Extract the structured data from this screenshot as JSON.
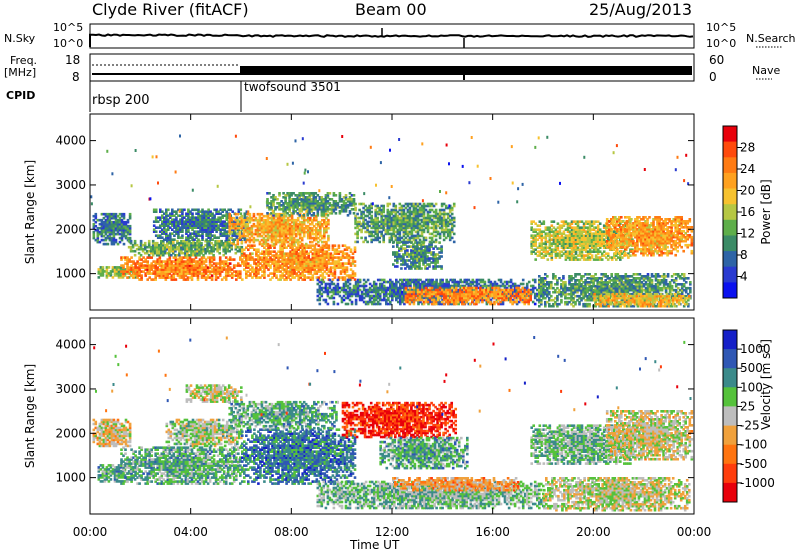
{
  "header": {
    "title": "Clyde River (fitACF)",
    "beam": "Beam 00",
    "date": "25/Aug/2013"
  },
  "status_panel": {
    "nsky_label": "N.Sky",
    "nsky_ticks": [
      "10^5",
      "10^0"
    ],
    "nsearch_label": "N.Search",
    "nsearch_ticks": [
      "10^5",
      "10^0"
    ],
    "freq_label": "Freq.",
    "freq_unit": "[MHz]",
    "freq_ticks": [
      "18",
      "8"
    ],
    "nave_label": "Nave",
    "nave_ticks": [
      "60",
      "0"
    ],
    "cpid_label": "CPID",
    "cpid_modes": [
      {
        "name": "rbsp 200",
        "start_hour": 0
      },
      {
        "name": "twofsound 3501",
        "start_hour": 6
      }
    ]
  },
  "chart_data": [
    {
      "type": "heatmap",
      "name": "power-panel",
      "ylabel": "Slant Range [km]",
      "yticks": [
        1000,
        2000,
        3000,
        4000
      ],
      "ylim": [
        180,
        4600
      ],
      "xlim_hours": [
        0,
        24
      ],
      "colorbar": {
        "label": "Power [dB]",
        "ticks": [
          "28",
          "24",
          "20",
          "16",
          "12",
          "8",
          "4"
        ],
        "colors": [
          "#e8000b",
          "#ff4a0c",
          "#ff7b13",
          "#ffa11f",
          "#f7c22f",
          "#b6c743",
          "#5eae4a",
          "#3b8b66",
          "#2e64a6",
          "#2a3bd0",
          "#0b11ee"
        ]
      },
      "regions": [
        {
          "t0": 0.1,
          "t1": 1.6,
          "r0": 1650,
          "r1": 2350,
          "level": 0.25
        },
        {
          "t0": 0.3,
          "t1": 1.8,
          "r0": 900,
          "r1": 1150,
          "level": 0.45
        },
        {
          "t0": 1.2,
          "t1": 6.0,
          "r0": 850,
          "r1": 1350,
          "level": 0.78
        },
        {
          "t0": 1.5,
          "t1": 6.0,
          "r0": 1400,
          "r1": 1750,
          "level": 0.4
        },
        {
          "t0": 2.5,
          "t1": 6.2,
          "r0": 1750,
          "r1": 2450,
          "level": 0.25
        },
        {
          "t0": 6.0,
          "t1": 10.5,
          "r0": 850,
          "r1": 1650,
          "level": 0.72
        },
        {
          "t0": 5.5,
          "t1": 9.5,
          "r0": 1650,
          "r1": 2350,
          "level": 0.68
        },
        {
          "t0": 7.0,
          "t1": 10.5,
          "r0": 2300,
          "r1": 2800,
          "level": 0.32
        },
        {
          "t0": 10.5,
          "t1": 14.5,
          "r0": 1700,
          "r1": 2600,
          "level": 0.35
        },
        {
          "t0": 12.0,
          "t1": 14.0,
          "r0": 1100,
          "r1": 1700,
          "level": 0.3
        },
        {
          "t0": 9.0,
          "t1": 18.0,
          "r0": 300,
          "r1": 850,
          "level": 0.22
        },
        {
          "t0": 12.5,
          "t1": 17.5,
          "r0": 300,
          "r1": 700,
          "level": 0.75
        },
        {
          "t0": 17.5,
          "t1": 21.5,
          "r0": 1300,
          "r1": 2200,
          "level": 0.5
        },
        {
          "t0": 17.8,
          "t1": 23.8,
          "r0": 250,
          "r1": 1000,
          "level": 0.32
        },
        {
          "t0": 20.5,
          "t1": 23.9,
          "r0": 1400,
          "r1": 2300,
          "level": 0.7
        },
        {
          "t0": 20.0,
          "t1": 23.8,
          "r0": 250,
          "r1": 550,
          "level": 0.62
        }
      ]
    },
    {
      "type": "heatmap",
      "name": "velocity-panel",
      "ylabel": "Slant Range [km]",
      "yticks": [
        1000,
        2000,
        3000,
        4000
      ],
      "ylim": [
        180,
        4600
      ],
      "xlabel": "Time UT",
      "xticks": [
        "00:00",
        "04:00",
        "08:00",
        "12:00",
        "16:00",
        "20:00",
        "00:00"
      ],
      "xlim_hours": [
        0,
        24
      ],
      "colorbar": {
        "label": "Velocity [m s^-1]",
        "ticks": [
          "1000",
          "500",
          "100",
          "25",
          "-25",
          "-100",
          "-500",
          "-1000"
        ],
        "colors": [
          "#1520c8",
          "#2f57b4",
          "#3b8a8a",
          "#55c23b",
          "#bdbdbd",
          "#f0a13c",
          "#ff7410",
          "#ff3d0c",
          "#e8000b"
        ]
      },
      "regions": [
        {
          "t0": 0.1,
          "t1": 1.6,
          "r0": 1700,
          "r1": 2300,
          "level": 0.45
        },
        {
          "t0": 0.3,
          "t1": 1.8,
          "r0": 900,
          "r1": 1300,
          "level": 0.66
        },
        {
          "t0": 1.2,
          "t1": 6.0,
          "r0": 850,
          "r1": 1700,
          "level": 0.66
        },
        {
          "t0": 3.0,
          "t1": 6.0,
          "r0": 1700,
          "r1": 2300,
          "level": 0.55
        },
        {
          "t0": 6.0,
          "t1": 10.5,
          "r0": 850,
          "r1": 2100,
          "level": 0.8
        },
        {
          "t0": 5.5,
          "t1": 9.8,
          "r0": 2100,
          "r1": 2700,
          "level": 0.66
        },
        {
          "t0": 10.0,
          "t1": 14.5,
          "r0": 1900,
          "r1": 2700,
          "level": 0.08
        },
        {
          "t0": 11.5,
          "t1": 15.0,
          "r0": 1200,
          "r1": 1900,
          "level": 0.68
        },
        {
          "t0": 9.0,
          "t1": 18.0,
          "r0": 300,
          "r1": 900,
          "level": 0.62
        },
        {
          "t0": 12.0,
          "t1": 17.0,
          "r0": 700,
          "r1": 1000,
          "level": 0.33
        },
        {
          "t0": 17.5,
          "t1": 21.5,
          "r0": 1300,
          "r1": 2200,
          "level": 0.62
        },
        {
          "t0": 18.0,
          "t1": 23.8,
          "r0": 250,
          "r1": 1000,
          "level": 0.5
        },
        {
          "t0": 20.5,
          "t1": 23.9,
          "r0": 1400,
          "r1": 2500,
          "level": 0.48
        },
        {
          "t0": 3.8,
          "t1": 6.0,
          "r0": 2700,
          "r1": 3100,
          "level": 0.5
        }
      ]
    }
  ]
}
